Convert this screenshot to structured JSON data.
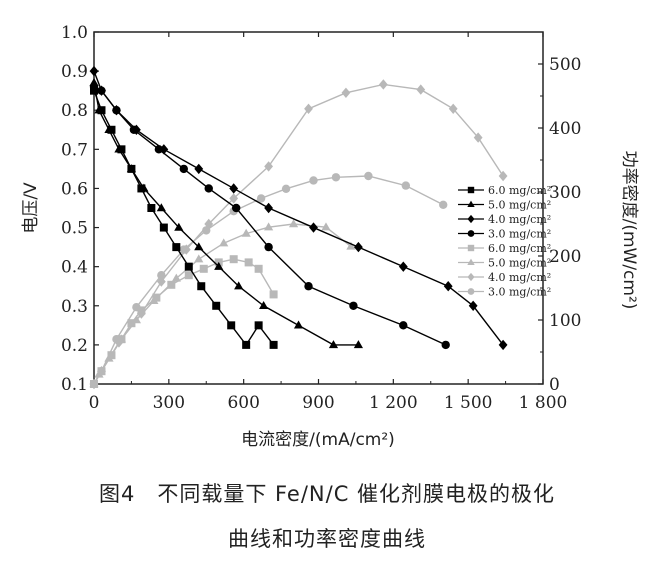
{
  "caption": {
    "line1": "图4　不同载量下 Fe/N/C 催化剂膜电极的极化",
    "line2": "曲线和功率密度曲线"
  },
  "chart_data": {
    "type": "line",
    "xlabel": "电流密度/(mA/cm²)",
    "ylabel_left": "电压/V",
    "ylabel_right": "功率密度/(mW/cm²)",
    "xlim": [
      0,
      1800
    ],
    "ylim_left": [
      0.1,
      1.0
    ],
    "ylim_right": [
      0,
      550
    ],
    "x_ticks": [
      "0",
      "300",
      "600",
      "900",
      "1 200",
      "1 500",
      "1 800"
    ],
    "y_left_ticks": [
      "0.1",
      "0.2",
      "0.3",
      "0.4",
      "0.5",
      "0.6",
      "0.7",
      "0.8",
      "0.9",
      "1.0"
    ],
    "y_right_ticks": [
      "0",
      "100",
      "200",
      "300",
      "400",
      "500"
    ],
    "grid": false,
    "legend_position": "right",
    "polarization_series": [
      {
        "name": "6.0 mg/cm²",
        "marker": "square",
        "color": "#000000",
        "x": [
          0,
          30,
          70,
          110,
          150,
          190,
          230,
          280,
          330,
          380,
          430,
          490,
          550,
          610,
          660,
          720
        ],
        "y": [
          0.85,
          0.8,
          0.75,
          0.7,
          0.65,
          0.6,
          0.55,
          0.5,
          0.45,
          0.4,
          0.35,
          0.3,
          0.25,
          0.2,
          0.25,
          0.2
        ]
      },
      {
        "name": "5.0 mg/cm²",
        "marker": "triangle",
        "color": "#000000",
        "x": [
          0,
          20,
          60,
          100,
          150,
          200,
          270,
          340,
          420,
          500,
          580,
          680,
          820,
          960,
          1060
        ],
        "y": [
          0.87,
          0.8,
          0.75,
          0.7,
          0.65,
          0.6,
          0.55,
          0.5,
          0.45,
          0.4,
          0.35,
          0.3,
          0.25,
          0.2,
          0.2
        ]
      },
      {
        "name": "4.0 mg/cm²",
        "marker": "diamond",
        "color": "#000000",
        "x": [
          0,
          30,
          90,
          170,
          280,
          420,
          560,
          700,
          880,
          1060,
          1240,
          1420,
          1520,
          1640
        ],
        "y": [
          0.9,
          0.85,
          0.8,
          0.75,
          0.7,
          0.65,
          0.6,
          0.55,
          0.5,
          0.45,
          0.4,
          0.35,
          0.3,
          0.2
        ]
      },
      {
        "name": "3.0 mg/cm²",
        "marker": "circle",
        "color": "#000000",
        "x": [
          0,
          30,
          90,
          160,
          260,
          360,
          460,
          570,
          700,
          860,
          1040,
          1240,
          1410
        ],
        "y": [
          0.86,
          0.85,
          0.8,
          0.75,
          0.7,
          0.65,
          0.6,
          0.55,
          0.45,
          0.35,
          0.3,
          0.25,
          0.2
        ]
      }
    ],
    "power_series": [
      {
        "name": "6.0 mg/cm²",
        "marker": "square",
        "color": "#b8b8b8",
        "x": [
          0,
          30,
          70,
          110,
          150,
          190,
          250,
          310,
          380,
          440,
          500,
          560,
          620,
          660,
          720
        ],
        "y": [
          0,
          20,
          45,
          70,
          95,
          115,
          135,
          155,
          170,
          180,
          190,
          195,
          190,
          180,
          140
        ]
      },
      {
        "name": "5.0 mg/cm²",
        "marker": "triangle",
        "color": "#b8b8b8",
        "x": [
          0,
          20,
          60,
          110,
          170,
          240,
          330,
          420,
          520,
          610,
          700,
          800,
          930,
          1030
        ],
        "y": [
          0,
          15,
          40,
          70,
          100,
          130,
          165,
          195,
          220,
          235,
          245,
          250,
          245,
          215
        ]
      },
      {
        "name": "4.0 mg/cm²",
        "marker": "diamond",
        "color": "#b8b8b8",
        "x": [
          0,
          30,
          100,
          190,
          270,
          370,
          460,
          560,
          700,
          860,
          1010,
          1160,
          1310,
          1440,
          1540,
          1640
        ],
        "y": [
          0,
          20,
          65,
          110,
          160,
          210,
          250,
          290,
          340,
          430,
          455,
          468,
          460,
          430,
          385,
          325
        ]
      },
      {
        "name": "3.0 mg/cm²",
        "marker": "circle",
        "color": "#b8b8b8",
        "x": [
          0,
          30,
          90,
          170,
          270,
          360,
          450,
          560,
          670,
          770,
          880,
          970,
          1100,
          1250,
          1400
        ],
        "y": [
          0,
          20,
          70,
          120,
          170,
          210,
          240,
          270,
          290,
          305,
          318,
          323,
          325,
          310,
          280
        ]
      }
    ]
  }
}
